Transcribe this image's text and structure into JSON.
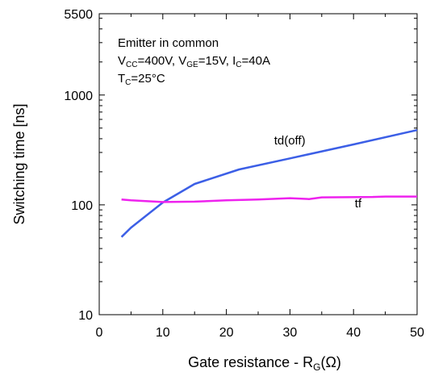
{
  "chart_data": {
    "type": "line",
    "xlabel": {
      "main": "Gate resistance - R",
      "sub": "G",
      "unit": "(Ω)"
    },
    "ylabel": "Switching time [ns]",
    "xlim": [
      0,
      50
    ],
    "ylim": [
      10,
      5500
    ],
    "yscale": "log",
    "x_ticks": [
      0,
      10,
      20,
      30,
      40,
      50
    ],
    "y_ticks": [
      10,
      100,
      1000,
      5500
    ],
    "grid": false,
    "annotation": {
      "line1": "Emitter in common",
      "line2": [
        {
          "t": "V",
          "sub": "CC"
        },
        {
          "t": "=400V, V",
          "sub": "GE"
        },
        {
          "t": "=15V, I",
          "sub": "C"
        },
        {
          "t": "=40A",
          "sub": ""
        }
      ],
      "line3": [
        {
          "t": "T",
          "sub": "C"
        },
        {
          "t": "=25°C",
          "sub": ""
        }
      ]
    },
    "series": [
      {
        "name": "td(off)",
        "color": "#3c5fe6",
        "x": [
          3.5,
          5,
          10,
          15,
          22,
          30,
          40,
          50
        ],
        "y": [
          51,
          62,
          105,
          155,
          210,
          265,
          355,
          480
        ]
      },
      {
        "name": "tf",
        "color": "#ee22ee",
        "x": [
          3.5,
          5,
          10,
          15,
          20,
          25,
          30,
          33,
          35,
          43,
          45,
          50
        ],
        "y": [
          112,
          110,
          106,
          107,
          110,
          112,
          115,
          113,
          117,
          118,
          119,
          119
        ]
      }
    ]
  }
}
